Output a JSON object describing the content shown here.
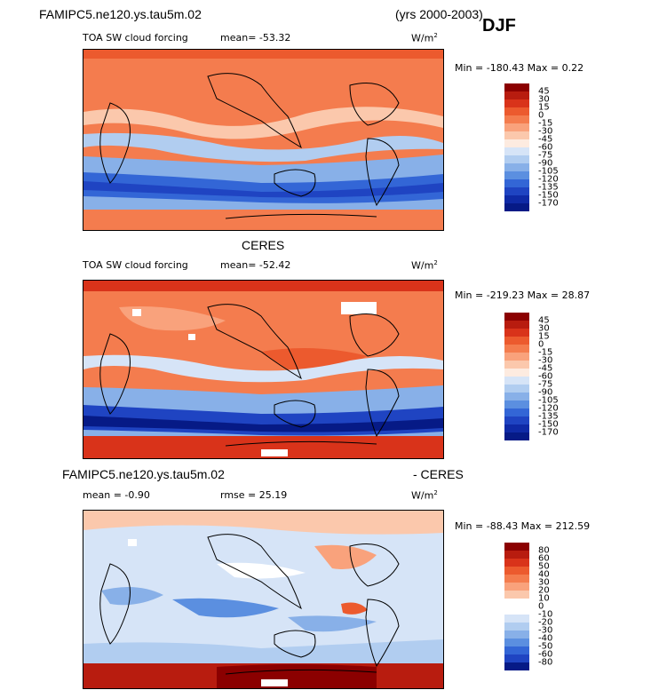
{
  "header": {
    "case_name": "FAMIPC5.ne120.ys.tau5m.02",
    "years": "(yrs 2000-2003)",
    "season": "DJF"
  },
  "panels": [
    {
      "title": "TOA SW cloud forcing",
      "mean_text": "mean= -53.32",
      "units": "W/m",
      "units_exp": "2",
      "minmax": "Min = -180.43 Max =   0.22",
      "colorbar": {
        "labels": [
          "45",
          "30",
          "15",
          "0",
          "-15",
          "-30",
          "-45",
          "-60",
          "-75",
          "-90",
          "-105",
          "-120",
          "-135",
          "-150",
          "-170"
        ],
        "colors": [
          "#8b0000",
          "#b81c0f",
          "#d9331a",
          "#ec5a2e",
          "#f47c4e",
          "#f9a27c",
          "#fbc8ac",
          "#fdebe0",
          "#d6e4f7",
          "#b1cdf0",
          "#88b0e8",
          "#5b8fe0",
          "#3366d6",
          "#1f44c2",
          "#0f2aa6",
          "#061a86"
        ]
      }
    },
    {
      "heading": "CERES",
      "title": "TOA SW cloud forcing",
      "mean_text": "mean= -52.42",
      "units": "W/m",
      "units_exp": "2",
      "minmax": "Min = -219.23 Max =  28.87",
      "colorbar": {
        "labels": [
          "45",
          "30",
          "15",
          "0",
          "-15",
          "-30",
          "-45",
          "-60",
          "-75",
          "-90",
          "-105",
          "-120",
          "-135",
          "-150",
          "-170"
        ],
        "colors": [
          "#8b0000",
          "#b81c0f",
          "#d9331a",
          "#ec5a2e",
          "#f47c4e",
          "#f9a27c",
          "#fbc8ac",
          "#fdebe0",
          "#d6e4f7",
          "#b1cdf0",
          "#88b0e8",
          "#5b8fe0",
          "#3366d6",
          "#1f44c2",
          "#0f2aa6",
          "#061a86"
        ]
      }
    },
    {
      "heading_left": "FAMIPC5.ne120.ys.tau5m.02",
      "heading_right": "- CERES",
      "mean_text": "mean =   -0.90",
      "rmse_text": "rmse =  25.19",
      "units": "W/m",
      "units_exp": "2",
      "minmax": "Min = -88.43 Max = 212.59",
      "colorbar": {
        "labels": [
          "80",
          "60",
          "50",
          "40",
          "30",
          "20",
          "10",
          "0",
          "-10",
          "-20",
          "-30",
          "-40",
          "-50",
          "-60",
          "-80"
        ],
        "colors": [
          "#8b0000",
          "#b81c0f",
          "#d9331a",
          "#ec5a2e",
          "#f47c4e",
          "#f9a27c",
          "#fbc8ac",
          "#ffffff",
          "#ffffff",
          "#d6e4f7",
          "#b1cdf0",
          "#88b0e8",
          "#5b8fe0",
          "#3366d6",
          "#1f44c2",
          "#061a86"
        ]
      }
    }
  ]
}
